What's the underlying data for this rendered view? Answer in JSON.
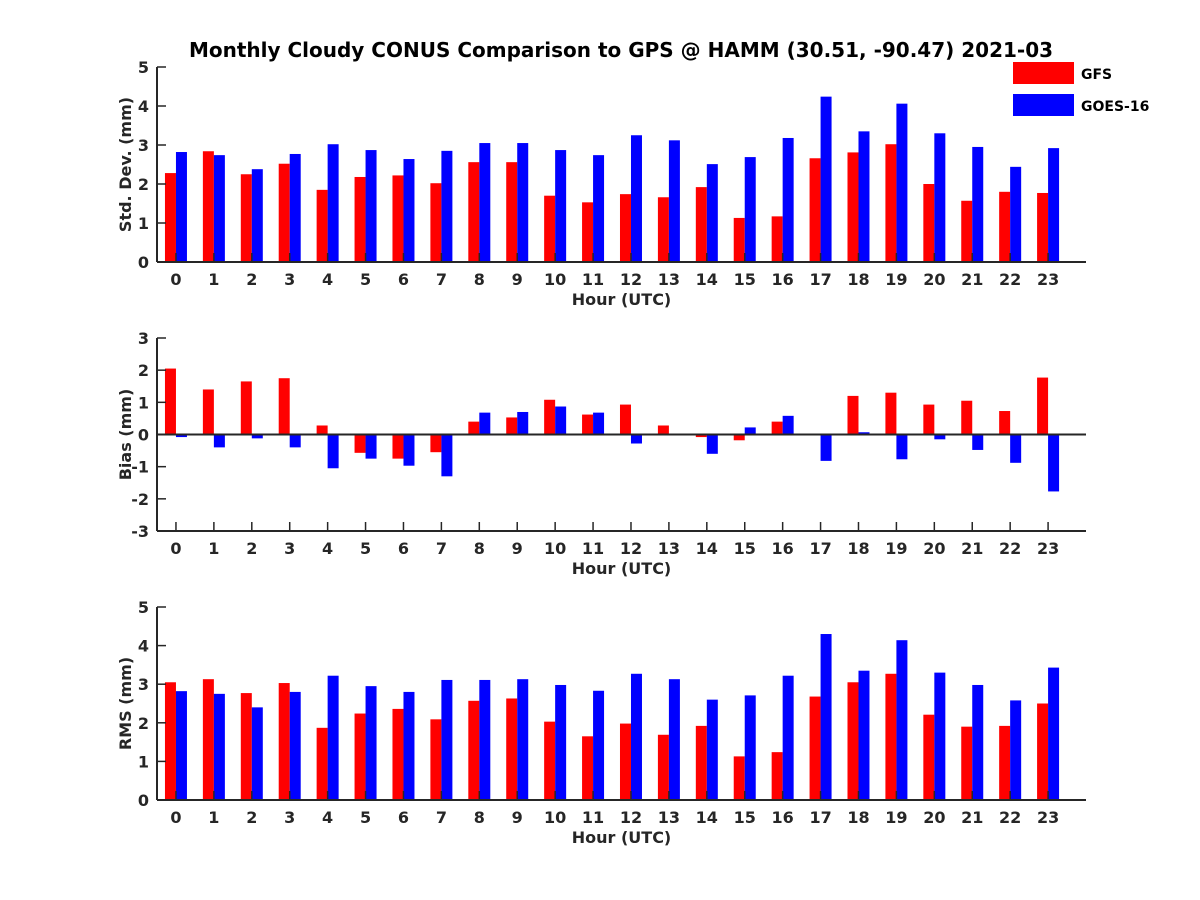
{
  "title": "Monthly Cloudy CONUS Comparison to GPS @ HAMM (30.51, -90.47) 2021-03",
  "legend": [
    {
      "name": "GFS",
      "color": "#ff0000"
    },
    {
      "name": "GOES-16",
      "color": "#0000ff"
    }
  ],
  "chart_data": [
    {
      "type": "bar",
      "ylabel": "Std. Dev. (mm)",
      "xlabel": "Hour (UTC)",
      "categories": [
        "0",
        "1",
        "2",
        "3",
        "4",
        "5",
        "6",
        "7",
        "8",
        "9",
        "10",
        "11",
        "12",
        "13",
        "14",
        "15",
        "16",
        "17",
        "18",
        "19",
        "20",
        "21",
        "22",
        "23"
      ],
      "ylim": [
        0,
        5
      ],
      "yticks": [
        0,
        1,
        2,
        3,
        4,
        5
      ],
      "series": [
        {
          "name": "GFS",
          "color": "#ff0000",
          "values": [
            2.28,
            2.84,
            2.25,
            2.52,
            1.85,
            2.18,
            2.22,
            2.02,
            2.56,
            2.56,
            1.7,
            1.53,
            1.74,
            1.66,
            1.92,
            1.13,
            1.17,
            2.66,
            2.81,
            3.02,
            2.0,
            1.57,
            1.8,
            1.77
          ]
        },
        {
          "name": "GOES-16",
          "color": "#0000ff",
          "values": [
            2.82,
            2.74,
            2.38,
            2.77,
            3.02,
            2.87,
            2.64,
            2.85,
            3.05,
            3.05,
            2.87,
            2.74,
            3.25,
            3.12,
            2.51,
            2.69,
            3.18,
            4.24,
            3.35,
            4.06,
            3.3,
            2.95,
            2.44,
            2.92
          ]
        }
      ]
    },
    {
      "type": "bar",
      "ylabel": "Bias (mm)",
      "xlabel": "Hour (UTC)",
      "categories": [
        "0",
        "1",
        "2",
        "3",
        "4",
        "5",
        "6",
        "7",
        "8",
        "9",
        "10",
        "11",
        "12",
        "13",
        "14",
        "15",
        "16",
        "17",
        "18",
        "19",
        "20",
        "21",
        "22",
        "23"
      ],
      "ylim": [
        -3,
        3
      ],
      "yticks": [
        -3,
        -2,
        -1,
        0,
        1,
        2,
        3
      ],
      "series": [
        {
          "name": "GFS",
          "color": "#ff0000",
          "values": [
            2.05,
            1.4,
            1.65,
            1.75,
            0.28,
            -0.57,
            -0.75,
            -0.55,
            0.4,
            0.53,
            1.08,
            0.62,
            0.93,
            0.28,
            -0.08,
            -0.18,
            0.4,
            0.0,
            1.2,
            1.3,
            0.93,
            1.05,
            0.73,
            1.77
          ]
        },
        {
          "name": "GOES-16",
          "color": "#0000ff",
          "values": [
            -0.08,
            -0.4,
            -0.12,
            -0.4,
            -1.05,
            -0.75,
            -0.97,
            -1.3,
            0.68,
            0.7,
            0.87,
            0.68,
            -0.28,
            0.0,
            -0.6,
            0.22,
            0.58,
            -0.82,
            0.07,
            -0.77,
            -0.15,
            -0.48,
            -0.88,
            -1.77
          ]
        }
      ]
    },
    {
      "type": "bar",
      "ylabel": "RMS (mm)",
      "xlabel": "Hour (UTC)",
      "categories": [
        "0",
        "1",
        "2",
        "3",
        "4",
        "5",
        "6",
        "7",
        "8",
        "9",
        "10",
        "11",
        "12",
        "13",
        "14",
        "15",
        "16",
        "17",
        "18",
        "19",
        "20",
        "21",
        "22",
        "23"
      ],
      "ylim": [
        0,
        5
      ],
      "yticks": [
        0,
        1,
        2,
        3,
        4,
        5
      ],
      "series": [
        {
          "name": "GFS",
          "color": "#ff0000",
          "values": [
            3.05,
            3.13,
            2.77,
            3.03,
            1.87,
            2.24,
            2.36,
            2.09,
            2.57,
            2.63,
            2.03,
            1.65,
            1.98,
            1.69,
            1.92,
            1.13,
            1.24,
            2.68,
            3.05,
            3.27,
            2.21,
            1.9,
            1.92,
            2.5
          ]
        },
        {
          "name": "GOES-16",
          "color": "#0000ff",
          "values": [
            2.82,
            2.75,
            2.4,
            2.8,
            3.22,
            2.95,
            2.8,
            3.11,
            3.11,
            3.13,
            2.98,
            2.83,
            3.27,
            3.13,
            2.6,
            2.71,
            3.22,
            4.3,
            3.35,
            4.14,
            3.3,
            2.98,
            2.58,
            3.43
          ]
        }
      ]
    }
  ]
}
